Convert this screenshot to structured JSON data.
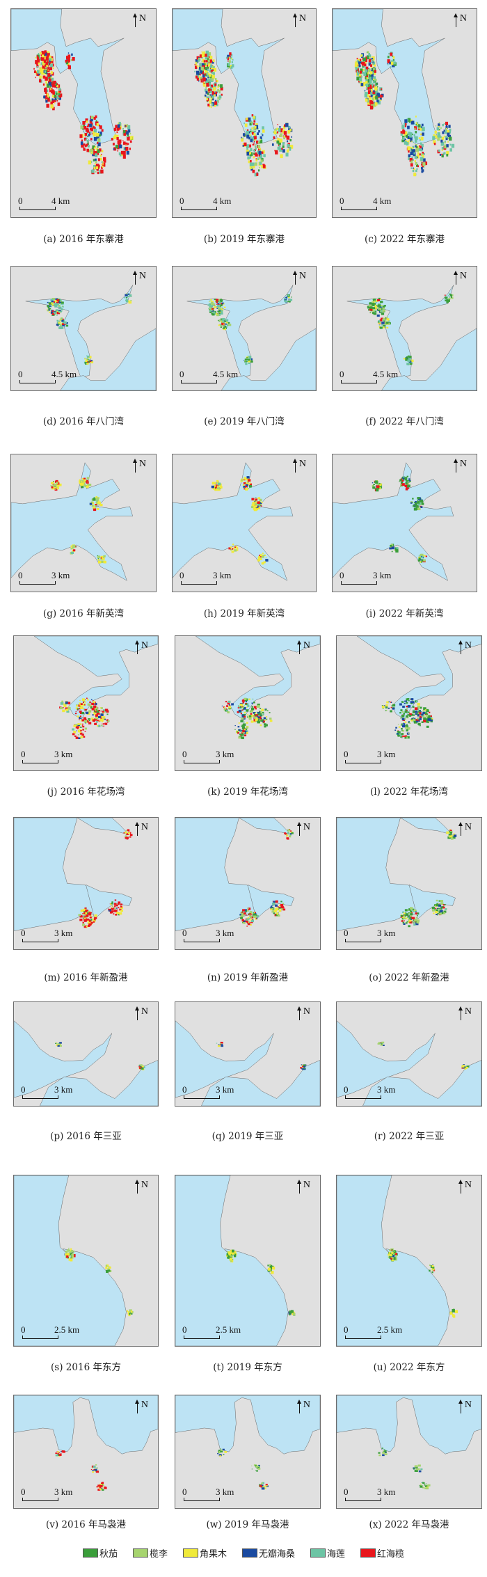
{
  "legend": [
    {
      "label": "秋茄",
      "color": "#3a9e3a"
    },
    {
      "label": "榄李",
      "color": "#a6d46e"
    },
    {
      "label": "角果木",
      "color": "#f0ea3a"
    },
    {
      "label": "无瓣海桑",
      "color": "#1a4aa0"
    },
    {
      "label": "海莲",
      "color": "#6cc4a4"
    },
    {
      "label": "红海榄",
      "color": "#e8161c"
    }
  ],
  "map_colors": {
    "land": "#e0e0e0",
    "water": "#bde3f4",
    "coast": "#666666"
  },
  "north_label": "N",
  "scale_zero": "0",
  "panels": [
    {
      "letter": "(a)",
      "caption": "2016 年东寨港",
      "scale": "4 km",
      "region": "东寨港",
      "year": "2016"
    },
    {
      "letter": "(b)",
      "caption": "2019 年东寨港",
      "scale": "4 km",
      "region": "东寨港",
      "year": "2019"
    },
    {
      "letter": "(c)",
      "caption": "2022 年东寨港",
      "scale": "4 km",
      "region": "东寨港",
      "year": "2022"
    },
    {
      "letter": "(d)",
      "caption": "2016 年八门湾",
      "scale": "4.5 km",
      "region": "八门湾",
      "year": "2016"
    },
    {
      "letter": "(e)",
      "caption": "2019 年八门湾",
      "scale": "4.5 km",
      "region": "八门湾",
      "year": "2019"
    },
    {
      "letter": "(f)",
      "caption": "2022 年八门湾",
      "scale": "4.5 km",
      "region": "八门湾",
      "year": "2022"
    },
    {
      "letter": "(g)",
      "caption": "2016 年新英湾",
      "scale": "3 km",
      "region": "新英湾",
      "year": "2016"
    },
    {
      "letter": "(h)",
      "caption": "2019 年新英湾",
      "scale": "3 km",
      "region": "新英湾",
      "year": "2019"
    },
    {
      "letter": "(i)",
      "caption": "2022 年新英湾",
      "scale": "3 km",
      "region": "新英湾",
      "year": "2022"
    },
    {
      "letter": "(j)",
      "caption": "2016 年花场湾",
      "scale": "3 km",
      "region": "花场湾",
      "year": "2016"
    },
    {
      "letter": "(k)",
      "caption": "2019 年花场湾",
      "scale": "3 km",
      "region": "花场湾",
      "year": "2019"
    },
    {
      "letter": "(l)",
      "caption": "2022 年花场湾",
      "scale": "3 km",
      "region": "花场湾",
      "year": "2022"
    },
    {
      "letter": "(m)",
      "caption": "2016 年新盈港",
      "scale": "3 km",
      "region": "新盈港",
      "year": "2016"
    },
    {
      "letter": "(n)",
      "caption": "2019 年新盈港",
      "scale": "3 km",
      "region": "新盈港",
      "year": "2019"
    },
    {
      "letter": "(o)",
      "caption": "2022 年新盈港",
      "scale": "3 km",
      "region": "新盈港",
      "year": "2022"
    },
    {
      "letter": "(p)",
      "caption": "2016 年三亚",
      "scale": "3 km",
      "region": "三亚",
      "year": "2016"
    },
    {
      "letter": "(q)",
      "caption": "2019 年三亚",
      "scale": "3 km",
      "region": "三亚",
      "year": "2019"
    },
    {
      "letter": "(r)",
      "caption": "2022 年三亚",
      "scale": "3 km",
      "region": "三亚",
      "year": "2022"
    },
    {
      "letter": "(s)",
      "caption": "2016 年东方",
      "scale": "2.5 km",
      "region": "东方",
      "year": "2016"
    },
    {
      "letter": "(t)",
      "caption": "2019 年东方",
      "scale": "2.5 km",
      "region": "东方",
      "year": "2019"
    },
    {
      "letter": "(u)",
      "caption": "2022 年东方",
      "scale": "2.5 km",
      "region": "东方",
      "year": "2022"
    },
    {
      "letter": "(v)",
      "caption": "2016 年马袅港",
      "scale": "3 km",
      "region": "马袅港",
      "year": "2016"
    },
    {
      "letter": "(w)",
      "caption": "2019 年马袅港",
      "scale": "3 km",
      "region": "马袅港",
      "year": "2019"
    },
    {
      "letter": "(x)",
      "caption": "2022 年马袅港",
      "scale": "3 km",
      "region": "马袅港",
      "year": "2022"
    }
  ]
}
